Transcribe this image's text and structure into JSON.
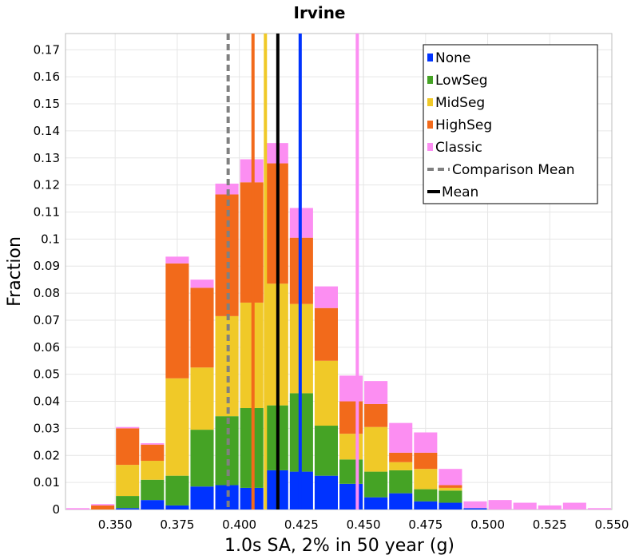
{
  "chart_data": {
    "type": "bar",
    "stacked": true,
    "title": "Irvine",
    "xlabel": "1.0s SA, 2% in 50 year (g)",
    "ylabel": "Fraction",
    "xlim": [
      0.33,
      0.55
    ],
    "ylim": [
      0,
      0.176
    ],
    "x_ticks": [
      "0.350",
      "0.375",
      "0.400",
      "0.425",
      "0.450",
      "0.475",
      "0.500",
      "0.525",
      "0.550"
    ],
    "y_ticks": [
      "0",
      "0.01",
      "0.02",
      "0.03",
      "0.04",
      "0.05",
      "0.06",
      "0.07",
      "0.08",
      "0.09",
      "0.1",
      "0.11",
      "0.12",
      "0.13",
      "0.14",
      "0.15",
      "0.16",
      "0.17"
    ],
    "grid": true,
    "legend_position": "top-right",
    "bin_width": 0.01,
    "x": [
      0.335,
      0.345,
      0.355,
      0.365,
      0.375,
      0.385,
      0.395,
      0.405,
      0.415,
      0.425,
      0.435,
      0.445,
      0.455,
      0.465,
      0.475,
      0.485,
      0.495,
      0.505,
      0.515,
      0.525,
      0.535,
      0.545
    ],
    "series": [
      {
        "name": "None",
        "color": "#0033ff",
        "values": [
          0,
          0,
          0.0005,
          0.0035,
          0.0015,
          0.0085,
          0.009,
          0.008,
          0.0145,
          0.014,
          0.0125,
          0.0095,
          0.0045,
          0.006,
          0.003,
          0.0025,
          0.0005,
          0,
          0,
          0,
          0,
          0
        ]
      },
      {
        "name": "LowSeg",
        "color": "#45a325",
        "values": [
          0,
          0,
          0.0045,
          0.0075,
          0.011,
          0.021,
          0.0255,
          0.0295,
          0.024,
          0.029,
          0.0185,
          0.009,
          0.0095,
          0.0085,
          0.0045,
          0.0045,
          0,
          0,
          0,
          0,
          0,
          0
        ]
      },
      {
        "name": "MidSeg",
        "color": "#f0c928",
        "values": [
          0,
          0,
          0.0115,
          0.007,
          0.036,
          0.023,
          0.037,
          0.039,
          0.045,
          0.033,
          0.024,
          0.0095,
          0.0165,
          0.003,
          0.0075,
          0.001,
          0,
          0,
          0,
          0,
          0,
          0
        ]
      },
      {
        "name": "HighSeg",
        "color": "#f26a1b",
        "values": [
          0,
          0.0015,
          0.0135,
          0.006,
          0.0425,
          0.0295,
          0.045,
          0.0445,
          0.0445,
          0.0245,
          0.0195,
          0.012,
          0.0085,
          0.0035,
          0.006,
          0.001,
          0,
          0,
          0,
          0,
          0,
          0
        ]
      },
      {
        "name": "Classic",
        "color": "#fc8ef2",
        "values": [
          0.0005,
          0.0005,
          0.0005,
          0.0005,
          0.0025,
          0.003,
          0.004,
          0.0085,
          0.0075,
          0.011,
          0.008,
          0.0095,
          0.0085,
          0.011,
          0.0075,
          0.006,
          0.0025,
          0.0035,
          0.0025,
          0.0015,
          0.0025,
          0.0005
        ]
      }
    ],
    "reference_lines": [
      {
        "name": "None",
        "x": 0.4245,
        "color": "#0033ff",
        "style": "solid"
      },
      {
        "name": "HighSeg",
        "x": 0.4055,
        "color": "#f26a1b",
        "style": "solid"
      },
      {
        "name": "MidSeg",
        "x": 0.4105,
        "color": "#f0c928",
        "style": "solid"
      },
      {
        "name": "Classic",
        "x": 0.4475,
        "color": "#fc8ef2",
        "style": "solid"
      },
      {
        "name": "Comparison Mean",
        "x": 0.3955,
        "color": "#808080",
        "style": "dashed"
      },
      {
        "name": "Mean",
        "x": 0.4155,
        "color": "#000000",
        "style": "solid"
      }
    ],
    "legend": [
      {
        "label": "None",
        "color": "#0033ff",
        "kind": "box"
      },
      {
        "label": "LowSeg",
        "color": "#45a325",
        "kind": "box"
      },
      {
        "label": "MidSeg",
        "color": "#f0c928",
        "kind": "box"
      },
      {
        "label": "HighSeg",
        "color": "#f26a1b",
        "kind": "box"
      },
      {
        "label": "Classic",
        "color": "#fc8ef2",
        "kind": "box"
      },
      {
        "label": "Comparison Mean",
        "color": "#808080",
        "kind": "dashed"
      },
      {
        "label": "Mean",
        "color": "#000000",
        "kind": "line"
      }
    ]
  }
}
